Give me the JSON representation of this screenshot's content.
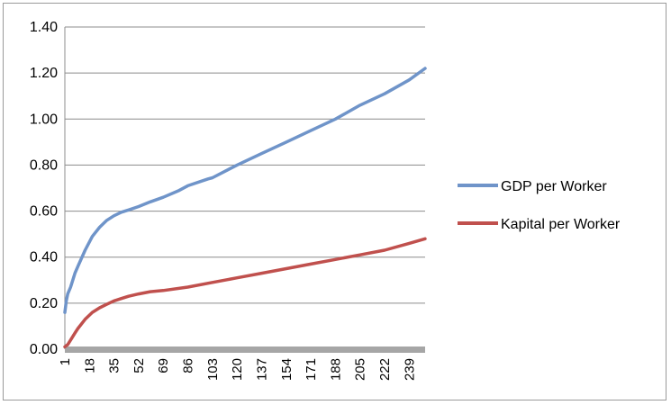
{
  "chart_data": {
    "type": "line",
    "title": "",
    "xlabel": "",
    "ylabel": "",
    "ylim": [
      0,
      1.4
    ],
    "yticks": [
      "0.00",
      "0.20",
      "0.40",
      "0.60",
      "0.80",
      "1.00",
      "1.20",
      "1.40"
    ],
    "x_range": [
      1,
      250
    ],
    "xticks": [
      "1",
      "18",
      "35",
      "52",
      "69",
      "86",
      "103",
      "120",
      "137",
      "154",
      "171",
      "188",
      "205",
      "222",
      "239"
    ],
    "grid": "horizontal",
    "legend": "right",
    "series": [
      {
        "name": "GDP per Worker",
        "color": "#6f94c9",
        "x": [
          1,
          2,
          3,
          5,
          8,
          10,
          15,
          20,
          25,
          30,
          35,
          40,
          45,
          52,
          60,
          69,
          80,
          86,
          100,
          103,
          120,
          137,
          154,
          171,
          188,
          205,
          222,
          239,
          250
        ],
        "y": [
          0.16,
          0.21,
          0.24,
          0.27,
          0.33,
          0.36,
          0.43,
          0.49,
          0.53,
          0.56,
          0.58,
          0.595,
          0.605,
          0.62,
          0.64,
          0.66,
          0.69,
          0.71,
          0.74,
          0.745,
          0.8,
          0.85,
          0.9,
          0.95,
          1.0,
          1.06,
          1.11,
          1.17,
          1.22
        ]
      },
      {
        "name": "Kapital per Worker",
        "color": "#c0504d",
        "x": [
          1,
          3,
          5,
          8,
          10,
          15,
          20,
          25,
          30,
          35,
          40,
          45,
          52,
          60,
          69,
          86,
          103,
          120,
          137,
          154,
          171,
          188,
          205,
          222,
          239,
          250
        ],
        "y": [
          0.01,
          0.02,
          0.04,
          0.07,
          0.09,
          0.13,
          0.16,
          0.18,
          0.195,
          0.21,
          0.22,
          0.23,
          0.24,
          0.25,
          0.255,
          0.27,
          0.29,
          0.31,
          0.33,
          0.35,
          0.37,
          0.39,
          0.41,
          0.43,
          0.46,
          0.48
        ]
      }
    ]
  }
}
